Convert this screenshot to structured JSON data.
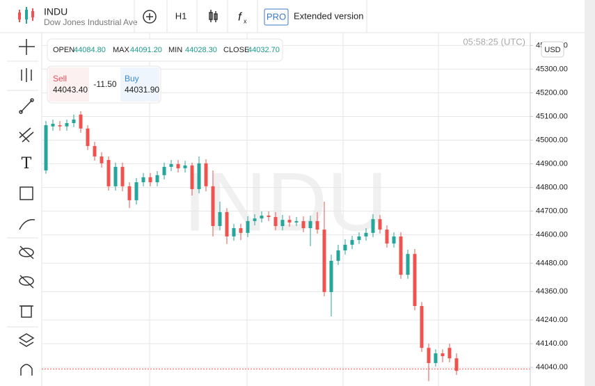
{
  "header": {
    "symbol": "INDU",
    "name": "Dow Jones Industrial Ave",
    "interval": "H1",
    "pro": "PRO",
    "extended": "Extended version"
  },
  "ohlc": {
    "open_label": "OPEN",
    "open": "44084.80",
    "max_label": "MAX",
    "max": "44091.20",
    "min_label": "MIN",
    "min": "44028.30",
    "close_label": "CLOSE",
    "close": "44032.70"
  },
  "trade": {
    "sell_label": "Sell",
    "sell": "44043.40",
    "spread": "-11.50",
    "buy_label": "Buy",
    "buy": "44031.90"
  },
  "time": "05:58:25 (UTC)",
  "currency": "USD",
  "watermark": "INDU",
  "chart_data": {
    "type": "candlestick",
    "up_color": "#26a69a",
    "down_color": "#ef5350",
    "grid": true,
    "ylim": [
      43961,
      45454
    ],
    "yticks": [
      {
        "value": 45400,
        "label": "45400.00"
      },
      {
        "value": 45300,
        "label": "45300.00"
      },
      {
        "value": 45200,
        "label": "45200.00"
      },
      {
        "value": 45100,
        "label": "45100.00"
      },
      {
        "value": 45000,
        "label": "45000.00"
      },
      {
        "value": 44900,
        "label": "44900.00"
      },
      {
        "value": 44800,
        "label": "44800.00"
      },
      {
        "value": 44700,
        "label": "44700.00"
      },
      {
        "value": 44600,
        "label": "44600.00"
      },
      {
        "value": 44480,
        "label": "44480.00"
      },
      {
        "value": 44360,
        "label": "44360.00"
      },
      {
        "value": 44240,
        "label": "44240.00"
      },
      {
        "value": 44140,
        "label": "44140.00"
      },
      {
        "value": 44040,
        "label": "44040.00"
      }
    ],
    "price_line": 44032.7,
    "open": [
      44872,
      45058,
      45063,
      45058,
      45072,
      45108,
      45049,
      44975,
      44931,
      44916,
      44805,
      44887,
      44805,
      44746,
      44822,
      44843,
      44822,
      44852,
      44887,
      44899,
      44881,
      44893,
      44793,
      44902,
      44805,
      44637,
      44696,
      44593,
      44628,
      44608,
      44658,
      44669,
      44681,
      44675,
      44637,
      44663,
      44652,
      44658,
      44628,
      44658,
      44622,
      44358,
      44490,
      44534,
      44558,
      44578,
      44593,
      44608,
      44666,
      44622,
      44563,
      44593,
      44431,
      44519,
      44299,
      44122,
      44058,
      44099,
      44122,
      44078
    ],
    "high": [
      45081,
      45087,
      45081,
      45087,
      45108,
      45122,
      45063,
      44993,
      44949,
      44931,
      44905,
      44905,
      44822,
      44840,
      44861,
      44861,
      44869,
      44905,
      44916,
      44916,
      44913,
      44905,
      44931,
      44919,
      44872,
      44740,
      44713,
      44646,
      44646,
      44678,
      44687,
      44699,
      44699,
      44696,
      44684,
      44681,
      44675,
      44678,
      44681,
      44696,
      44740,
      44516,
      44558,
      44581,
      44596,
      44611,
      44628,
      44687,
      44684,
      44640,
      44611,
      44611,
      44537,
      44540,
      44316,
      44140,
      44116,
      44116,
      44140,
      44099
    ],
    "low": [
      44858,
      45040,
      45040,
      45040,
      45055,
      45031,
      44958,
      44913,
      44884,
      44787,
      44787,
      44784,
      44713,
      44728,
      44805,
      44805,
      44805,
      44834,
      44869,
      44863,
      44863,
      44766,
      44775,
      44784,
      44593,
      44619,
      44561,
      44575,
      44578,
      44590,
      44640,
      44652,
      44658,
      44619,
      44619,
      44634,
      44637,
      44611,
      44552,
      44605,
      44340,
      44255,
      44472,
      44516,
      44540,
      44561,
      44575,
      44590,
      44605,
      44546,
      44546,
      44414,
      44414,
      44281,
      44105,
      43981,
      44043,
      44061,
      44061,
      44008
    ],
    "close": [
      45063,
      45069,
      45058,
      45072,
      45087,
      45049,
      44975,
      44931,
      44902,
      44805,
      44887,
      44805,
      44746,
      44822,
      44843,
      44822,
      44852,
      44887,
      44899,
      44881,
      44893,
      44793,
      44902,
      44805,
      44637,
      44696,
      44593,
      44628,
      44608,
      44658,
      44669,
      44681,
      44675,
      44637,
      44663,
      44652,
      44658,
      44628,
      44658,
      44622,
      44358,
      44490,
      44534,
      44558,
      44578,
      44593,
      44608,
      44666,
      44622,
      44563,
      44593,
      44431,
      44519,
      44299,
      44122,
      44058,
      44099,
      44087,
      44078,
      44025
    ]
  }
}
